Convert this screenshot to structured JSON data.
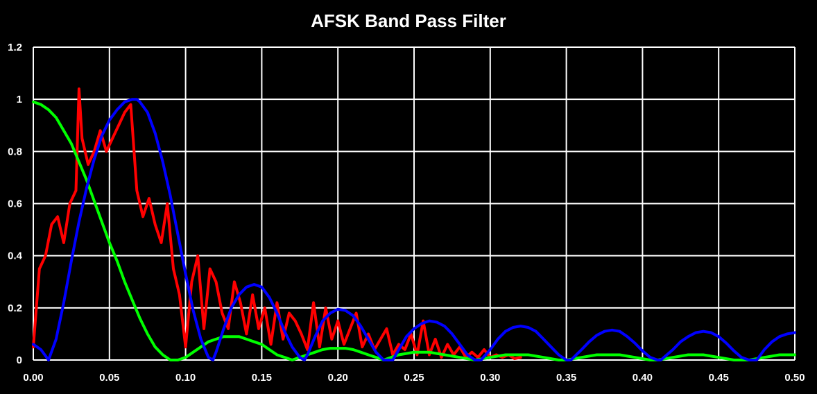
{
  "chart_data": {
    "type": "line",
    "title": "AFSK Band Pass Filter",
    "xlabel": "",
    "ylabel": "",
    "xlim": [
      0,
      0.5
    ],
    "ylim": [
      0,
      1.2
    ],
    "x_ticks": [
      "0.00",
      "0.05",
      "0.10",
      "0.15",
      "0.20",
      "0.25",
      "0.30",
      "0.35",
      "0.40",
      "0.45",
      "0.50"
    ],
    "y_ticks": [
      "0",
      "0.2",
      "0.4",
      "0.6",
      "0.8",
      "1",
      "1.2"
    ],
    "grid": true,
    "legend": "none",
    "background": "#000000",
    "grid_color": "#ffffff",
    "series": [
      {
        "color": "#ff0000",
        "x": [
          0.0,
          0.004,
          0.008,
          0.012,
          0.016,
          0.02,
          0.024,
          0.028,
          0.03,
          0.032,
          0.036,
          0.04,
          0.044,
          0.048,
          0.052,
          0.056,
          0.06,
          0.064,
          0.068,
          0.072,
          0.076,
          0.08,
          0.084,
          0.088,
          0.092,
          0.096,
          0.1,
          0.104,
          0.108,
          0.112,
          0.116,
          0.12,
          0.124,
          0.128,
          0.132,
          0.136,
          0.14,
          0.144,
          0.148,
          0.152,
          0.156,
          0.16,
          0.164,
          0.168,
          0.172,
          0.176,
          0.18,
          0.184,
          0.188,
          0.192,
          0.196,
          0.2,
          0.204,
          0.208,
          0.212,
          0.216,
          0.22,
          0.224,
          0.228,
          0.232,
          0.236,
          0.24,
          0.244,
          0.248,
          0.252,
          0.256,
          0.26,
          0.264,
          0.268,
          0.272,
          0.276,
          0.28,
          0.284,
          0.288,
          0.292,
          0.296,
          0.3,
          0.304,
          0.308,
          0.312,
          0.316,
          0.32
        ],
        "y": [
          0.05,
          0.35,
          0.4,
          0.52,
          0.55,
          0.45,
          0.6,
          0.65,
          1.04,
          0.85,
          0.75,
          0.8,
          0.88,
          0.8,
          0.85,
          0.9,
          0.95,
          0.98,
          0.65,
          0.55,
          0.62,
          0.52,
          0.45,
          0.6,
          0.35,
          0.25,
          0.05,
          0.3,
          0.4,
          0.12,
          0.35,
          0.3,
          0.18,
          0.12,
          0.3,
          0.22,
          0.1,
          0.25,
          0.12,
          0.2,
          0.06,
          0.22,
          0.08,
          0.18,
          0.15,
          0.1,
          0.04,
          0.22,
          0.05,
          0.2,
          0.08,
          0.15,
          0.06,
          0.12,
          0.18,
          0.05,
          0.1,
          0.04,
          0.08,
          0.12,
          0.02,
          0.06,
          0.04,
          0.1,
          0.02,
          0.15,
          0.02,
          0.08,
          0.01,
          0.06,
          0.02,
          0.05,
          0.01,
          0.03,
          0.01,
          0.04,
          0.01,
          0.02,
          0.01,
          0.02,
          0.005,
          0.01
        ]
      },
      {
        "color": "#00ff00",
        "x": [
          0.0,
          0.005,
          0.01,
          0.015,
          0.02,
          0.025,
          0.03,
          0.035,
          0.04,
          0.045,
          0.05,
          0.055,
          0.06,
          0.065,
          0.07,
          0.075,
          0.08,
          0.085,
          0.09,
          0.095,
          0.1,
          0.105,
          0.11,
          0.115,
          0.12,
          0.125,
          0.13,
          0.135,
          0.14,
          0.145,
          0.15,
          0.155,
          0.16,
          0.165,
          0.17,
          0.175,
          0.18,
          0.185,
          0.19,
          0.195,
          0.2,
          0.205,
          0.21,
          0.215,
          0.22,
          0.225,
          0.23,
          0.235,
          0.24,
          0.245,
          0.25,
          0.255,
          0.26,
          0.265,
          0.27,
          0.275,
          0.28,
          0.285,
          0.29,
          0.295,
          0.3,
          0.305,
          0.31,
          0.315,
          0.32,
          0.325,
          0.33,
          0.335,
          0.34,
          0.345,
          0.35,
          0.355,
          0.36,
          0.365,
          0.37,
          0.375,
          0.38,
          0.385,
          0.39,
          0.395,
          0.4,
          0.405,
          0.41,
          0.415,
          0.42,
          0.425,
          0.43,
          0.435,
          0.44,
          0.445,
          0.45,
          0.455,
          0.46,
          0.465,
          0.47,
          0.475,
          0.48,
          0.485,
          0.49,
          0.495,
          0.5
        ],
        "y": [
          0.99,
          0.98,
          0.96,
          0.93,
          0.88,
          0.83,
          0.76,
          0.69,
          0.61,
          0.53,
          0.45,
          0.38,
          0.3,
          0.23,
          0.16,
          0.1,
          0.05,
          0.02,
          0.0,
          0.0,
          0.01,
          0.03,
          0.05,
          0.07,
          0.08,
          0.09,
          0.09,
          0.09,
          0.08,
          0.07,
          0.06,
          0.04,
          0.02,
          0.01,
          0.0,
          0.01,
          0.02,
          0.03,
          0.04,
          0.045,
          0.045,
          0.045,
          0.04,
          0.03,
          0.02,
          0.01,
          0.0,
          0.01,
          0.02,
          0.025,
          0.03,
          0.03,
          0.03,
          0.025,
          0.02,
          0.015,
          0.01,
          0.005,
          0.0,
          0.005,
          0.01,
          0.015,
          0.02,
          0.02,
          0.02,
          0.02,
          0.015,
          0.01,
          0.005,
          0.0,
          0.0,
          0.005,
          0.01,
          0.015,
          0.02,
          0.02,
          0.02,
          0.02,
          0.015,
          0.01,
          0.005,
          0.0,
          0.0,
          0.005,
          0.01,
          0.015,
          0.02,
          0.02,
          0.02,
          0.015,
          0.01,
          0.005,
          0.0,
          0.0,
          0.0,
          0.005,
          0.01,
          0.015,
          0.02,
          0.02,
          0.02
        ]
      },
      {
        "color": "#0000ff",
        "x": [
          0.0,
          0.005,
          0.01,
          0.015,
          0.02,
          0.025,
          0.03,
          0.035,
          0.04,
          0.045,
          0.05,
          0.055,
          0.06,
          0.065,
          0.068,
          0.07,
          0.075,
          0.08,
          0.085,
          0.09,
          0.095,
          0.1,
          0.105,
          0.11,
          0.115,
          0.118,
          0.12,
          0.125,
          0.13,
          0.135,
          0.14,
          0.145,
          0.15,
          0.155,
          0.16,
          0.165,
          0.17,
          0.175,
          0.178,
          0.18,
          0.185,
          0.19,
          0.195,
          0.2,
          0.205,
          0.21,
          0.215,
          0.22,
          0.225,
          0.23,
          0.236,
          0.24,
          0.245,
          0.25,
          0.255,
          0.26,
          0.265,
          0.27,
          0.275,
          0.28,
          0.285,
          0.29,
          0.294,
          0.3,
          0.305,
          0.31,
          0.315,
          0.32,
          0.325,
          0.33,
          0.335,
          0.34,
          0.345,
          0.35,
          0.353,
          0.36,
          0.365,
          0.37,
          0.375,
          0.38,
          0.385,
          0.39,
          0.395,
          0.4,
          0.405,
          0.41,
          0.412,
          0.42,
          0.425,
          0.43,
          0.435,
          0.44,
          0.445,
          0.45,
          0.455,
          0.46,
          0.465,
          0.47,
          0.475,
          0.48,
          0.485,
          0.49,
          0.495,
          0.5
        ],
        "y": [
          0.06,
          0.04,
          0.0,
          0.08,
          0.22,
          0.38,
          0.53,
          0.66,
          0.77,
          0.86,
          0.92,
          0.96,
          0.99,
          1.0,
          1.0,
          0.99,
          0.95,
          0.87,
          0.76,
          0.63,
          0.48,
          0.33,
          0.19,
          0.08,
          0.01,
          0.0,
          0.03,
          0.12,
          0.2,
          0.25,
          0.28,
          0.29,
          0.28,
          0.24,
          0.18,
          0.11,
          0.05,
          0.01,
          0.0,
          0.02,
          0.09,
          0.15,
          0.18,
          0.195,
          0.19,
          0.17,
          0.13,
          0.08,
          0.03,
          0.0,
          0.0,
          0.04,
          0.09,
          0.12,
          0.14,
          0.15,
          0.145,
          0.13,
          0.1,
          0.06,
          0.02,
          0.0,
          0.0,
          0.04,
          0.08,
          0.11,
          0.125,
          0.13,
          0.125,
          0.11,
          0.08,
          0.05,
          0.02,
          0.0,
          0.0,
          0.04,
          0.07,
          0.095,
          0.11,
          0.115,
          0.11,
          0.09,
          0.065,
          0.035,
          0.01,
          0.0,
          0.0,
          0.04,
          0.07,
          0.09,
          0.105,
          0.11,
          0.105,
          0.09,
          0.065,
          0.035,
          0.01,
          0.0,
          0.0,
          0.04,
          0.07,
          0.09,
          0.1,
          0.105
        ]
      }
    ]
  }
}
